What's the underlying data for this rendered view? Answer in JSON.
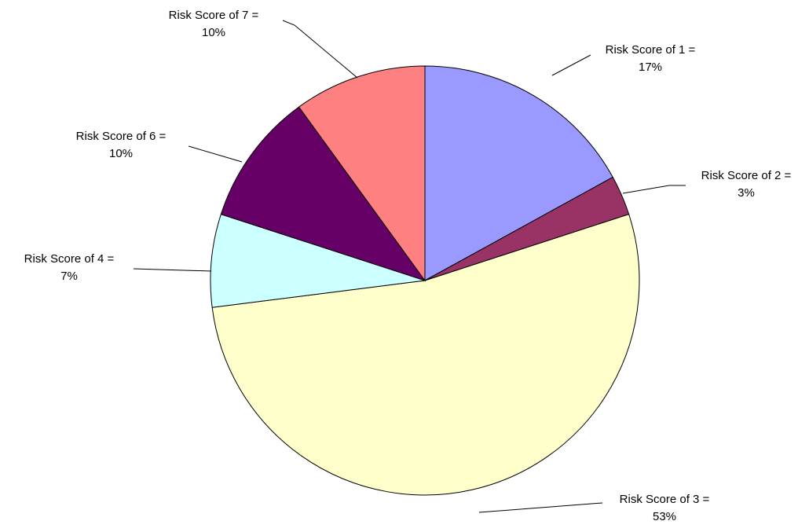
{
  "chart_data": {
    "type": "pie",
    "title": "",
    "slices": [
      {
        "label_line1": "Risk Score of 1 =",
        "label_line2": "17%",
        "value": 17,
        "color": "#9999FF"
      },
      {
        "label_line1": "Risk Score of 2 =",
        "label_line2": "3%",
        "value": 3,
        "color": "#993366"
      },
      {
        "label_line1": "Risk Score of 3 =",
        "label_line2": "53%",
        "value": 53,
        "color": "#FFFFCC"
      },
      {
        "label_line1": "Risk Score of 4 =",
        "label_line2": "7%",
        "value": 7,
        "color": "#CCFFFF"
      },
      {
        "label_line1": "Risk Score of 6 =",
        "label_line2": "10%",
        "value": 10,
        "color": "#660066"
      },
      {
        "label_line1": "Risk Score of 7 =",
        "label_line2": "10%",
        "value": 10,
        "color": "#FF8080"
      }
    ],
    "start_angle": "12 o'clock",
    "direction": "clockwise",
    "legend": "none",
    "labels": "outside with leader lines"
  }
}
